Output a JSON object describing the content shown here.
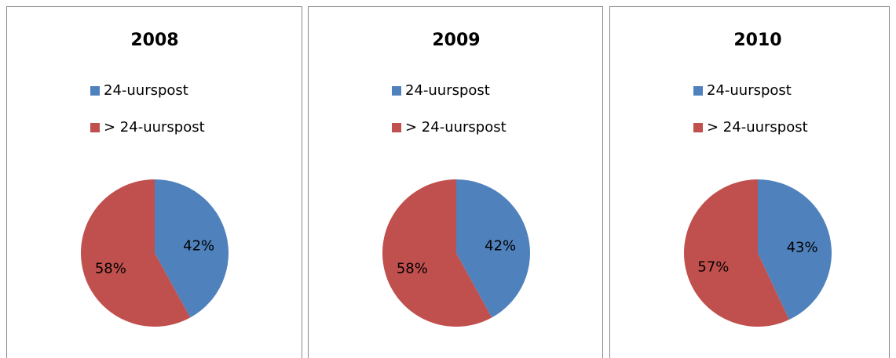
{
  "chart_data": [
    {
      "type": "pie",
      "title": "2008",
      "categories": [
        "24-uurspost",
        "> 24-uurspost"
      ],
      "values": [
        42,
        58
      ],
      "value_labels": [
        "42%",
        "58%"
      ],
      "colors": [
        "#4f81bd",
        "#c0504d"
      ]
    },
    {
      "type": "pie",
      "title": "2009",
      "categories": [
        "24-uurspost",
        "> 24-uurspost"
      ],
      "values": [
        42,
        58
      ],
      "value_labels": [
        "42%",
        "58%"
      ],
      "colors": [
        "#4f81bd",
        "#c0504d"
      ]
    },
    {
      "type": "pie",
      "title": "2010",
      "categories": [
        "24-uurspost",
        "> 24-uurspost"
      ],
      "values": [
        43,
        57
      ],
      "value_labels": [
        "43%",
        "57%"
      ],
      "colors": [
        "#4f81bd",
        "#c0504d"
      ]
    }
  ]
}
